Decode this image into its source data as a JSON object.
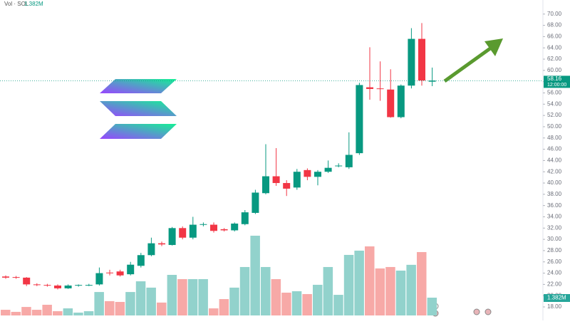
{
  "chart_data": {
    "type": "candlestick",
    "volume_name": "Vol · SOL",
    "volume_label": "1.382M",
    "open": [
      23.4,
      23.3,
      23.2,
      22.0,
      21.9,
      21.8,
      21.3,
      21.8,
      21.9,
      22.0,
      24.1,
      24.3,
      23.8,
      25.3,
      27.2,
      29.3,
      29.0,
      32.0,
      30.3,
      32.6,
      32.6,
      31.8,
      31.6,
      32.7,
      34.7,
      38.2,
      41.2,
      40.0,
      39.2,
      42.3,
      41.1,
      42.0,
      43.0,
      42.8,
      45.3,
      57.0,
      56.8,
      56.6,
      51.7,
      57.3,
      65.6,
      58.0
    ],
    "high": [
      23.6,
      23.5,
      23.3,
      22.2,
      22.1,
      22.0,
      22.0,
      22.0,
      22.1,
      25.0,
      24.6,
      24.6,
      26.0,
      27.6,
      30.3,
      29.6,
      32.2,
      32.3,
      34.0,
      33.0,
      33.0,
      32.0,
      33.0,
      35.2,
      38.8,
      46.9,
      46.2,
      40.5,
      42.5,
      42.6,
      42.3,
      44.0,
      43.5,
      49.0,
      57.8,
      64.1,
      61.6,
      60.2,
      57.5,
      67.5,
      68.4,
      60.5
    ],
    "low": [
      23.0,
      23.0,
      21.7,
      21.7,
      21.6,
      21.1,
      21.2,
      21.6,
      21.7,
      21.8,
      23.6,
      23.4,
      23.6,
      25.0,
      27.0,
      28.8,
      28.9,
      30.0,
      30.0,
      32.3,
      31.2,
      31.4,
      31.4,
      32.5,
      34.5,
      38.0,
      39.5,
      37.7,
      38.8,
      40.5,
      39.6,
      41.8,
      42.8,
      42.5,
      45.0,
      54.8,
      54.6,
      51.6,
      51.5,
      56.8,
      57.3,
      57.2
    ],
    "close": [
      23.2,
      23.2,
      22.0,
      21.9,
      21.8,
      21.3,
      21.8,
      21.9,
      21.9,
      24.0,
      24.0,
      23.6,
      25.5,
      27.2,
      29.3,
      29.1,
      32.0,
      30.3,
      32.6,
      32.7,
      31.5,
      31.6,
      32.8,
      34.8,
      38.3,
      41.2,
      40.0,
      39.0,
      42.0,
      41.1,
      42.0,
      42.7,
      43.1,
      45.0,
      57.4,
      56.7,
      56.7,
      51.7,
      57.3,
      65.6,
      58.2,
      58.2
    ],
    "volume": [
      0.44,
      0.28,
      0.66,
      0.44,
      0.83,
      0.33,
      0.55,
      0.22,
      0.33,
      1.82,
      1.11,
      1.05,
      1.82,
      2.65,
      2.16,
      1.0,
      3.15,
      2.82,
      2.82,
      2.82,
      0.55,
      1.27,
      2.16,
      3.76,
      6.19,
      3.76,
      2.82,
      1.77,
      1.88,
      1.66,
      2.38,
      3.76,
      1.6,
      4.7,
      5.03,
      5.36,
      3.65,
      3.76,
      3.48,
      3.93,
      4.92,
      1.382
    ],
    "up_color": "#089981",
    "down_color": "#f23645",
    "volume_up_color": "#92d2cc",
    "volume_down_color": "#f7a9a7",
    "current_price": {
      "value": 58.16,
      "label": "58.16"
    },
    "countdown": "12:00:00",
    "ylim": [
      15.6,
      72.5
    ],
    "yticks": [
      {
        "value": 18,
        "label": "18.00"
      },
      {
        "value": 20,
        "label": "20.00"
      },
      {
        "value": 22,
        "label": "22.00"
      },
      {
        "value": 24,
        "label": "24.00"
      },
      {
        "value": 26,
        "label": "26.00"
      },
      {
        "value": 28,
        "label": "28.00"
      },
      {
        "value": 30,
        "label": "30.00"
      },
      {
        "value": 32,
        "label": "32.00"
      },
      {
        "value": 34,
        "label": "34.00"
      },
      {
        "value": 36,
        "label": "36.00"
      },
      {
        "value": 38,
        "label": "38.00"
      },
      {
        "value": 40,
        "label": "40.00"
      },
      {
        "value": 42,
        "label": "42.00"
      },
      {
        "value": 44,
        "label": "44.00"
      },
      {
        "value": 46,
        "label": "46.00"
      },
      {
        "value": 48,
        "label": "48.00"
      },
      {
        "value": 50,
        "label": "50.00"
      },
      {
        "value": 52,
        "label": "52.00"
      },
      {
        "value": 54,
        "label": "54.00"
      },
      {
        "value": 56,
        "label": "56.00"
      },
      {
        "value": 58,
        "label": "58.00"
      },
      {
        "value": 60,
        "label": "60.00"
      },
      {
        "value": 62,
        "label": "62.00"
      },
      {
        "value": 64,
        "label": "64.00"
      },
      {
        "value": 66,
        "label": "66.00"
      },
      {
        "value": 68,
        "label": "68.00"
      },
      {
        "value": 70,
        "label": "70.00"
      }
    ],
    "grid": false
  }
}
